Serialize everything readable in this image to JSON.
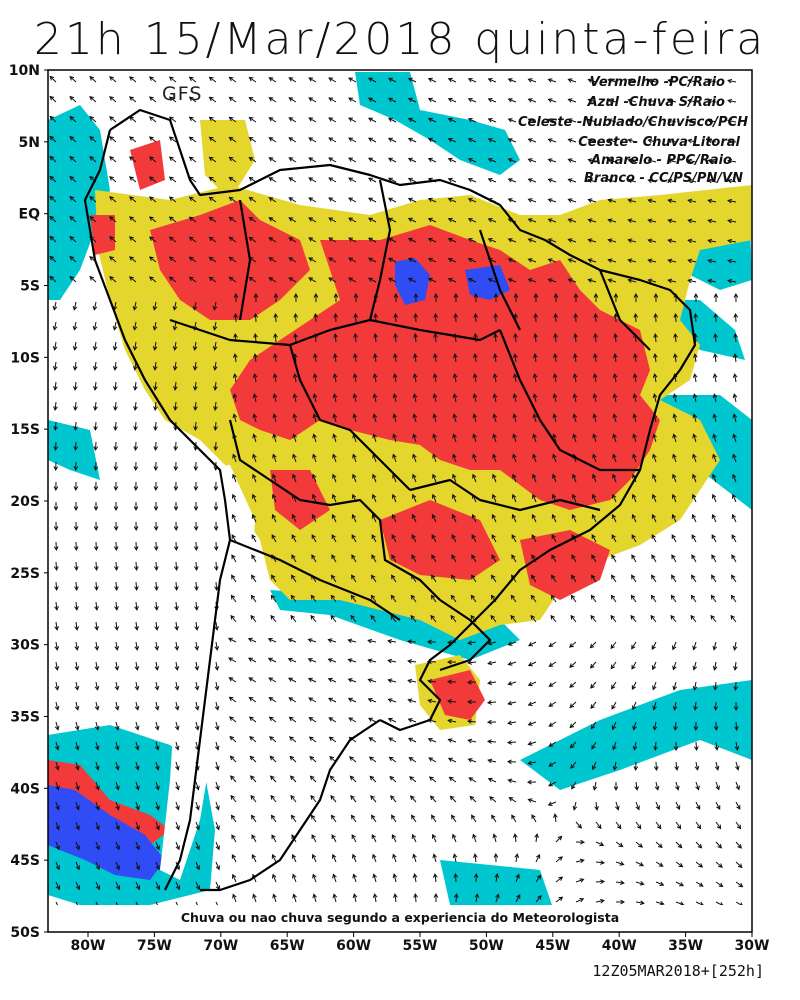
{
  "title": "21h 15/Mar/2018 quinta-feira",
  "model": "GFS",
  "legend": [
    "Vermelho -PC/Raio",
    "Azul -Chuva S/Raio",
    "Celeste -Nublado/Chuvisco/PCH",
    "Ceeste - Chuva Litoral",
    "Amarelo - PPC/Raio",
    "Branco - CC/PS/PN/VN"
  ],
  "note": "Chuva ou nao chuva segundo a experiencia do Meteorologista",
  "footer": "12Z05MAR2018+[252h]",
  "y_axis": [
    "10N",
    "5N",
    "EQ",
    "5S",
    "10S",
    "15S",
    "20S",
    "25S",
    "30S",
    "35S",
    "40S",
    "45S",
    "50S"
  ],
  "x_axis": [
    "80W",
    "75W",
    "70W",
    "65W",
    "60W",
    "55W",
    "50W",
    "45W",
    "40W",
    "35W",
    "30W"
  ],
  "colors": {
    "red": "#f23a3a",
    "blue": "#2f4cf5",
    "cyan": "#00c7cf",
    "yellow": "#e5d62e",
    "white": "#ffffff",
    "border": "#000000"
  }
}
